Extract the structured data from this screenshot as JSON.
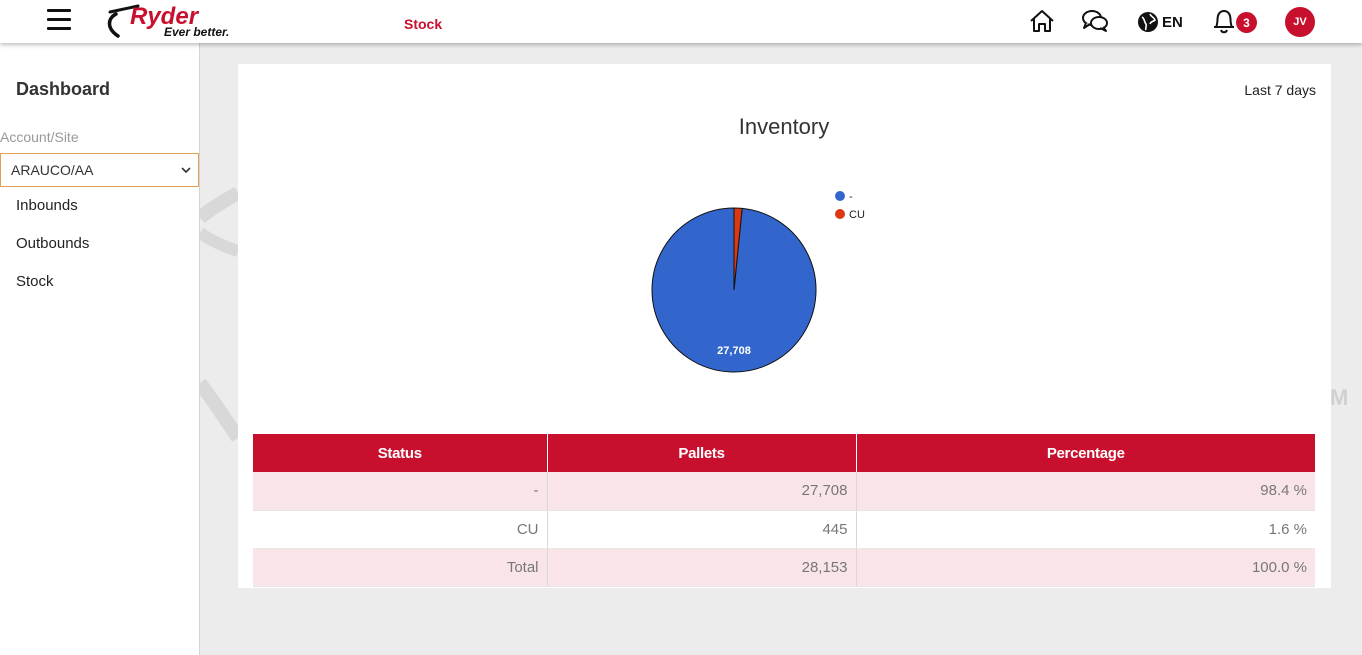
{
  "header": {
    "logo_text": "Ryder",
    "logo_tagline": "Ever better.",
    "page_label": "Stock",
    "language": "EN",
    "notifications_count": "3",
    "user_initials": "JV",
    "icons": [
      "home-icon",
      "chat-icon",
      "globe-icon",
      "bell-icon"
    ]
  },
  "sidebar": {
    "title": "Dashboard",
    "account_label": "Account/Site",
    "account_value": "ARAUCO/AA",
    "items": [
      {
        "label": "Inbounds"
      },
      {
        "label": "Outbounds"
      },
      {
        "label": "Stock"
      }
    ]
  },
  "main": {
    "range_label": "Last 7 days",
    "table": {
      "headers": [
        "Status",
        "Pallets",
        "Percentage"
      ],
      "rows": [
        {
          "status": "-",
          "pallets": "27,708",
          "percentage": "98.4 %"
        },
        {
          "status": "CU",
          "pallets": "445",
          "percentage": "1.6 %"
        },
        {
          "status": "Total",
          "pallets": "28,153",
          "percentage": "100.0 %"
        }
      ]
    }
  },
  "chart_data": {
    "type": "pie",
    "title": "Inventory",
    "categories": [
      "-",
      "CU"
    ],
    "values": [
      27708,
      445
    ],
    "colors": [
      "#3366cc",
      "#dc3912"
    ],
    "data_labels": [
      "27,708",
      ""
    ],
    "legend": "right"
  }
}
